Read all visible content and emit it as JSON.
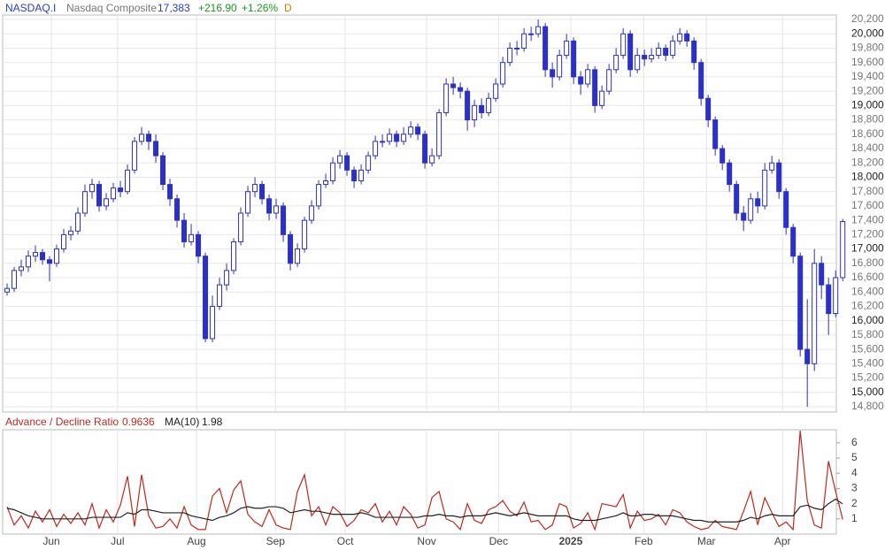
{
  "header": {
    "symbol": "NASDAQ.I",
    "name": "Nasdaq Composite",
    "last": "17,383",
    "change": "+216.90",
    "change_pct": "+1.26%",
    "interval": "D"
  },
  "chart_data": [
    {
      "type": "candlestick",
      "color": "#2a2fd0",
      "grid": true,
      "xlim": [
        -1,
        117.1
      ],
      "ylim": [
        14726,
        20262
      ],
      "yticks": [
        {
          "value": 14800,
          "label": "14,800"
        },
        {
          "value": 15000,
          "label": "15,000"
        },
        {
          "value": 15200,
          "label": "15,200"
        },
        {
          "value": 15400,
          "label": "15,400"
        },
        {
          "value": 15600,
          "label": "15,600"
        },
        {
          "value": 15800,
          "label": "15,800"
        },
        {
          "value": 16000,
          "label": "16,000"
        },
        {
          "value": 16200,
          "label": "16,200"
        },
        {
          "value": 16400,
          "label": "16,400"
        },
        {
          "value": 16600,
          "label": "16,600"
        },
        {
          "value": 16800,
          "label": "16,800"
        },
        {
          "value": 17000,
          "label": "17,000"
        },
        {
          "value": 17200,
          "label": "17,200"
        },
        {
          "value": 17400,
          "label": "17,400"
        },
        {
          "value": 17600,
          "label": "17,600"
        },
        {
          "value": 17800,
          "label": "17,800"
        },
        {
          "value": 18000,
          "label": "18,000"
        },
        {
          "value": 18200,
          "label": "18,200"
        },
        {
          "value": 18400,
          "label": "18,400"
        },
        {
          "value": 18600,
          "label": "18,600"
        },
        {
          "value": 18800,
          "label": "18,800"
        },
        {
          "value": 19000,
          "label": "19,000"
        },
        {
          "value": 19200,
          "label": "19,200"
        },
        {
          "value": 19400,
          "label": "19,400"
        },
        {
          "value": 19600,
          "label": "19,600"
        },
        {
          "value": 19800,
          "label": "19,800"
        },
        {
          "value": 20000,
          "label": "20,000"
        },
        {
          "value": 20200,
          "label": "20,200"
        }
      ],
      "open": [
        16400,
        16450,
        16700,
        16750,
        16900,
        16950,
        16850,
        16800,
        17000,
        17200,
        17250,
        17500,
        17800,
        17900,
        17600,
        17700,
        17850,
        17800,
        18100,
        18500,
        18600,
        18500,
        18300,
        17900,
        17700,
        17400,
        17100,
        17200,
        16900,
        15750,
        16200,
        16500,
        16700,
        17100,
        17500,
        17800,
        17900,
        17700,
        17500,
        17600,
        17200,
        16800,
        17000,
        17400,
        17600,
        17900,
        17950,
        18200,
        18300,
        18100,
        17950,
        18100,
        18300,
        18500,
        18500,
        18600,
        18500,
        18600,
        18700,
        18600,
        18200,
        18300,
        18900,
        19300,
        19250,
        19200,
        18800,
        19000,
        18900,
        19100,
        19300,
        19600,
        19800,
        19800,
        20000,
        20000,
        20100,
        19500,
        19400,
        19700,
        19900,
        19400,
        19300,
        19500,
        19000,
        19200,
        19500,
        19700,
        20000,
        19500,
        19700,
        19650,
        19700,
        19800,
        19700,
        19900,
        20000,
        19900,
        19600,
        19100,
        18800,
        18400,
        18200,
        17900,
        17500,
        17400,
        17700,
        17600,
        18100,
        18200,
        17800,
        17300,
        16900,
        15600,
        15400,
        16800,
        16500,
        16100,
        16600
      ],
      "high": [
        16520,
        16750,
        16850,
        16980,
        17050,
        17000,
        16900,
        17060,
        17280,
        17320,
        17580,
        17900,
        17980,
        17950,
        17780,
        17920,
        17950,
        18180,
        18560,
        18700,
        18650,
        18600,
        18350,
        17980,
        17760,
        17500,
        17350,
        17250,
        16950,
        16350,
        16600,
        16800,
        17150,
        17580,
        17880,
        18000,
        17950,
        17760,
        17700,
        17650,
        17250,
        17080,
        17450,
        17680,
        17960,
        18050,
        18280,
        18380,
        18350,
        18150,
        18180,
        18360,
        18580,
        18600,
        18680,
        18650,
        18700,
        18780,
        18750,
        18650,
        18400,
        18950,
        19380,
        19400,
        19320,
        19250,
        19080,
        19100,
        19180,
        19380,
        19680,
        19880,
        19900,
        20080,
        20100,
        20200,
        20150,
        19600,
        19780,
        20000,
        19950,
        19480,
        19580,
        19550,
        19280,
        19580,
        19800,
        20080,
        20050,
        19800,
        19780,
        19800,
        19880,
        19850,
        19980,
        20080,
        20050,
        19950,
        19650,
        19150,
        18850,
        18450,
        18250,
        17950,
        17600,
        17780,
        17800,
        18200,
        18300,
        18250,
        17850,
        17350,
        16950,
        16300,
        17000,
        16900,
        16600,
        16700,
        17420
      ],
      "low": [
        16350,
        16400,
        16620,
        16680,
        16820,
        16780,
        16550,
        16750,
        16950,
        17120,
        17200,
        17450,
        17700,
        17520,
        17540,
        17650,
        17720,
        17760,
        18050,
        18450,
        18380,
        18200,
        17820,
        17600,
        17300,
        17020,
        17050,
        16800,
        15700,
        15700,
        16150,
        16420,
        16650,
        17050,
        17450,
        17720,
        17620,
        17400,
        17420,
        17100,
        16700,
        16750,
        16950,
        17350,
        17550,
        17850,
        17900,
        18120,
        18020,
        17850,
        17900,
        18050,
        18250,
        18420,
        18450,
        18420,
        18450,
        18550,
        18520,
        18120,
        18150,
        18250,
        18850,
        19150,
        19100,
        18650,
        18700,
        18820,
        18850,
        19050,
        19250,
        19550,
        19700,
        19750,
        19900,
        19950,
        19400,
        19250,
        19350,
        19650,
        19300,
        19150,
        19250,
        18900,
        18950,
        19150,
        19450,
        19650,
        19400,
        19450,
        19550,
        19600,
        19650,
        19620,
        19650,
        19850,
        19820,
        19500,
        19000,
        18700,
        18300,
        18100,
        17800,
        17400,
        17250,
        17350,
        17500,
        17550,
        18050,
        17700,
        17200,
        16800,
        15500,
        14800,
        15300,
        16300,
        15800,
        16050,
        16550
      ],
      "close": [
        16450,
        16700,
        16750,
        16900,
        16950,
        16850,
        16800,
        17000,
        17200,
        17250,
        17500,
        17800,
        17900,
        17600,
        17700,
        17850,
        17800,
        18100,
        18500,
        18600,
        18500,
        18300,
        17900,
        17700,
        17400,
        17100,
        17200,
        16900,
        15750,
        16200,
        16500,
        16700,
        17100,
        17500,
        17800,
        17900,
        17700,
        17500,
        17600,
        17200,
        16800,
        17000,
        17400,
        17600,
        17900,
        17950,
        18200,
        18300,
        18100,
        17950,
        18100,
        18300,
        18500,
        18500,
        18600,
        18500,
        18600,
        18700,
        18600,
        18200,
        18300,
        18900,
        19300,
        19250,
        19200,
        18800,
        19000,
        18900,
        19100,
        19300,
        19600,
        19800,
        19800,
        20000,
        20000,
        20100,
        19500,
        19400,
        19700,
        19900,
        19400,
        19300,
        19500,
        19000,
        19200,
        19500,
        19700,
        20000,
        19500,
        19700,
        19650,
        19700,
        19800,
        19700,
        19900,
        20000,
        19900,
        19600,
        19100,
        18800,
        18400,
        18200,
        17900,
        17500,
        17400,
        17700,
        17600,
        18100,
        18200,
        17800,
        17300,
        16900,
        15600,
        15400,
        16800,
        16500,
        16100,
        16600,
        17383
      ]
    },
    {
      "type": "line",
      "xlim": [
        -1,
        117.1
      ],
      "ylim": [
        0,
        6.86
      ],
      "yticks": [
        1,
        2,
        3,
        4,
        5,
        6
      ],
      "xticks": [
        {
          "value": 6.25,
          "label": "Jun"
        },
        {
          "value": 15.6,
          "label": "Jul"
        },
        {
          "value": 26.75,
          "label": "Aug"
        },
        {
          "value": 37.9,
          "label": "Sep"
        },
        {
          "value": 47.75,
          "label": "Oct"
        },
        {
          "value": 59.25,
          "label": "Nov"
        },
        {
          "value": 69.4,
          "label": "Dec"
        },
        {
          "value": 79.6,
          "label": "2025"
        },
        {
          "value": 89.9,
          "label": "Feb"
        },
        {
          "value": 98.75,
          "label": "Mar"
        },
        {
          "value": 109.5,
          "label": "Apr"
        }
      ],
      "series": [
        {
          "name": "Advance / Decline Ratio",
          "color": "#c0281e",
          "values": [
            1.8,
            0.6,
            1.2,
            0.4,
            1.5,
            0.8,
            1.6,
            0.5,
            1.3,
            0.7,
            1.4,
            0.6,
            2.0,
            0.4,
            1.6,
            0.8,
            1.9,
            3.8,
            0.5,
            3.9,
            1.2,
            0.4,
            0.5,
            1.0,
            0.4,
            1.8,
            0.6,
            0.3,
            0.3,
            2.5,
            3.0,
            1.4,
            2.9,
            3.5,
            1.3,
            0.8,
            0.5,
            1.6,
            0.6,
            0.4,
            0.3,
            2.8,
            3.9,
            1.2,
            1.8,
            0.6,
            1.8,
            1.4,
            0.5,
            0.9,
            1.6,
            1.4,
            2.0,
            0.8,
            1.5,
            0.6,
            1.8,
            1.3,
            0.4,
            0.6,
            2.4,
            2.8,
            1.0,
            0.8,
            0.3,
            2.0,
            0.9,
            0.7,
            1.6,
            1.8,
            2.2,
            1.5,
            1.2,
            2.1,
            0.8,
            0.9,
            0.3,
            0.6,
            2.0,
            1.8,
            0.4,
            0.7,
            1.4,
            0.3,
            2.0,
            1.9,
            1.8,
            2.6,
            0.4,
            1.5,
            0.9,
            1.0,
            1.3,
            0.6,
            1.6,
            1.4,
            0.8,
            0.5,
            0.3,
            0.4,
            0.9,
            0.5,
            0.4,
            0.3,
            1.5,
            2.8,
            0.6,
            2.4,
            1.4,
            0.5,
            0.8,
            0.3,
            6.8,
            2.2,
            0.6,
            0.4,
            4.8,
            2.8,
            0.9636
          ]
        },
        {
          "name": "MA(10)",
          "color": "#222222",
          "values": [
            1.7,
            1.6,
            1.4,
            1.2,
            1.1,
            1.0,
            1.0,
            1.0,
            1.0,
            1.0,
            1.0,
            1.0,
            1.1,
            1.1,
            1.1,
            1.1,
            1.1,
            1.4,
            1.3,
            1.6,
            1.6,
            1.5,
            1.4,
            1.4,
            1.4,
            1.4,
            1.2,
            1.1,
            1.0,
            0.9,
            1.1,
            1.2,
            1.4,
            1.7,
            1.8,
            1.7,
            1.7,
            1.8,
            1.8,
            1.7,
            1.4,
            1.5,
            1.6,
            1.5,
            1.5,
            1.4,
            1.3,
            1.3,
            1.3,
            1.3,
            1.4,
            1.3,
            1.1,
            1.1,
            1.1,
            1.1,
            1.1,
            1.1,
            1.1,
            1.2,
            1.2,
            1.3,
            1.2,
            1.2,
            1.1,
            1.2,
            1.2,
            1.2,
            1.3,
            1.4,
            1.3,
            1.2,
            1.3,
            1.4,
            1.3,
            1.2,
            1.2,
            1.2,
            1.2,
            1.2,
            1.0,
            0.9,
            0.9,
            0.9,
            1.0,
            1.1,
            1.2,
            1.4,
            1.2,
            1.2,
            1.3,
            1.3,
            1.2,
            1.2,
            1.2,
            1.1,
            1.0,
            0.9,
            0.9,
            0.8,
            0.8,
            0.8,
            0.8,
            0.8,
            0.9,
            1.1,
            1.0,
            1.2,
            1.3,
            1.2,
            1.2,
            1.2,
            1.8,
            1.9,
            1.7,
            1.6,
            2.0,
            2.3,
            1.98
          ]
        }
      ]
    }
  ]
}
